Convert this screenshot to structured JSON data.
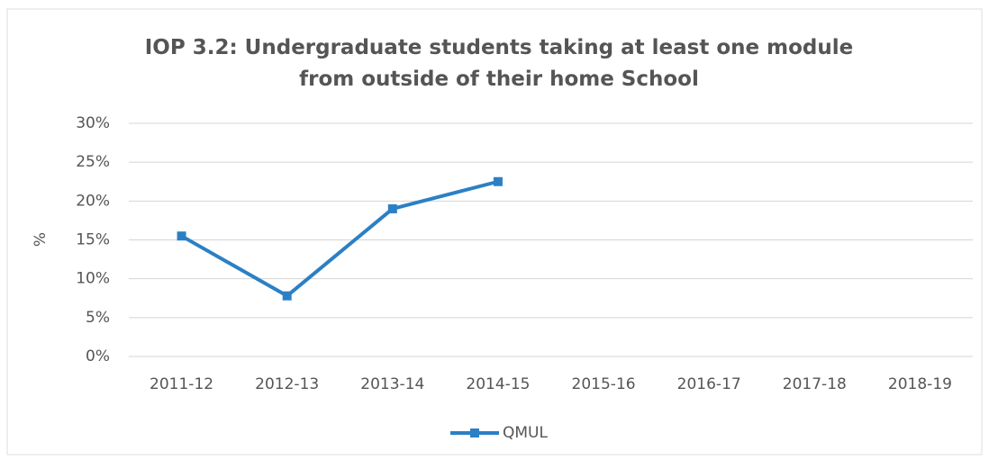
{
  "chart_data": {
    "type": "line",
    "title": "IOP 3.2: Undergraduate students taking at least one module from outside of their home School",
    "y_label": "%",
    "categories": [
      "2011-12",
      "2012-13",
      "2013-14",
      "2014-15",
      "2015-16",
      "2016-17",
      "2017-18",
      "2018-19"
    ],
    "series": [
      {
        "name": "QMUL",
        "color": "#2b80c5",
        "values": [
          15.5,
          7.8,
          19,
          22.5,
          null,
          null,
          null,
          null
        ]
      }
    ],
    "ylim": [
      0,
      30
    ],
    "yticks": [
      {
        "value": 0,
        "label": "0%"
      },
      {
        "value": 5,
        "label": "5%"
      },
      {
        "value": 10,
        "label": "10%"
      },
      {
        "value": 15,
        "label": "15%"
      },
      {
        "value": 20,
        "label": "20%"
      },
      {
        "value": 25,
        "label": "25%"
      },
      {
        "value": 30,
        "label": "30%"
      }
    ],
    "grid": true,
    "legend": "bottom"
  }
}
